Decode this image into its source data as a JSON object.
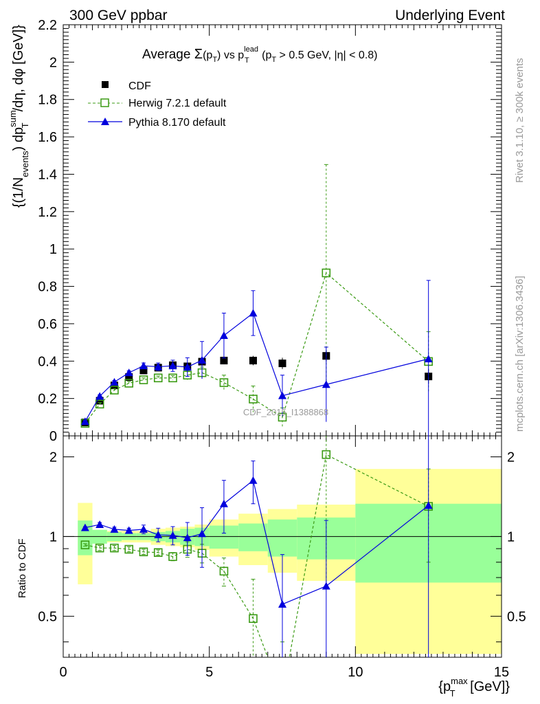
{
  "header": {
    "left_label": "300 GeV ppbar",
    "right_label": "Underlying Event"
  },
  "side_labels": {
    "rivet": "Rivet 3.1.10, ≥ 300k events",
    "mcplots": "mcplots.cern.ch [arXiv:1306.3436]"
  },
  "watermark": "CDF_2015_I1388868",
  "chart_data": {
    "type": "line",
    "title": {
      "prefix": "Average ",
      "sigma": "Σ",
      "sum_arg": "(p",
      "sum_sub": "T",
      "sum_close": ")",
      "vs": " vs p",
      "lead_sup": "lead",
      "lead_sub": "T",
      "cut_open": " (p",
      "cut_sub": "T",
      "cut_rest": " > 0.5 GeV, |η| < 0.8)"
    },
    "xlabel": {
      "open": "{p",
      "sup": "max",
      "sub": "T",
      "rest": " [GeV]}"
    },
    "ylabel": {
      "p1": "{(1/N",
      "sub1": "events",
      "p2": ") dp",
      "sup2": "sum",
      "sub2": "T",
      "p3": "/dη, dφ [GeV]}"
    },
    "ratio_ylabel": "Ratio to CDF",
    "xlim": [
      0,
      15
    ],
    "ylim": [
      0,
      2.2
    ],
    "ratio_ylim": [
      0.35,
      2.4
    ],
    "ratio_log": true,
    "x_major_ticks": [
      "0",
      "5",
      "10",
      "15"
    ],
    "y_tick_labels": [
      "0",
      "0.2",
      "0.4",
      "0.6",
      "0.8",
      "1",
      "1.2",
      "1.4",
      "1.6",
      "1.8",
      "2",
      "2.2"
    ],
    "ratio_tick_labels": [
      "0.5",
      "1",
      "2"
    ],
    "legend": {
      "placement": "top-left",
      "entries": [
        "CDF",
        "Herwig 7.2.1 default",
        "Pythia 8.170 default"
      ]
    },
    "colors": {
      "cdf": "#000000",
      "herwig": "#3a9a13",
      "pythia": "#0000dd",
      "band_inner": "#99ff99",
      "band_outer": "#ffff99"
    },
    "bins": [
      {
        "lo": 0.5,
        "hi": 1.0
      },
      {
        "lo": 1.0,
        "hi": 1.5
      },
      {
        "lo": 1.5,
        "hi": 2.0
      },
      {
        "lo": 2.0,
        "hi": 2.5
      },
      {
        "lo": 2.5,
        "hi": 3.0
      },
      {
        "lo": 3.0,
        "hi": 3.5
      },
      {
        "lo": 3.5,
        "hi": 4.0
      },
      {
        "lo": 4.0,
        "hi": 4.5
      },
      {
        "lo": 4.5,
        "hi": 5.0
      },
      {
        "lo": 5.0,
        "hi": 6.0
      },
      {
        "lo": 6.0,
        "hi": 7.0
      },
      {
        "lo": 7.0,
        "hi": 8.0
      },
      {
        "lo": 8.0,
        "hi": 10.0
      },
      {
        "lo": 10.0,
        "hi": 15.0
      }
    ],
    "series": [
      {
        "name": "CDF",
        "marker": "square-filled",
        "x": [
          0.75,
          1.25,
          1.75,
          2.25,
          2.75,
          3.25,
          3.75,
          4.25,
          4.75,
          5.5,
          6.5,
          7.5,
          9.0,
          12.5
        ],
        "y": [
          0.072,
          0.188,
          0.27,
          0.315,
          0.35,
          0.365,
          0.378,
          0.372,
          0.397,
          0.403,
          0.403,
          0.388,
          0.428,
          0.318
        ],
        "err": [
          0.005,
          0.01,
          0.01,
          0.012,
          0.012,
          0.014,
          0.015,
          0.016,
          0.02,
          0.02,
          0.025,
          0.03,
          0.03,
          0.04
        ],
        "ratio_inner": [
          0.15,
          0.06,
          0.04,
          0.03,
          0.03,
          0.04,
          0.05,
          0.07,
          0.08,
          0.1,
          0.12,
          0.16,
          0.18,
          0.33
        ],
        "ratio_outer": [
          0.34,
          0.06,
          0.05,
          0.05,
          0.05,
          0.07,
          0.08,
          0.09,
          0.11,
          0.16,
          0.22,
          0.27,
          0.32,
          0.8
        ]
      },
      {
        "name": "Herwig 7.2.1 default",
        "marker": "square-open",
        "x": [
          0.75,
          1.25,
          1.75,
          2.25,
          2.75,
          3.25,
          3.75,
          4.25,
          4.75,
          5.5,
          6.5,
          7.5,
          9.0,
          12.5
        ],
        "y": [
          0.067,
          0.17,
          0.245,
          0.282,
          0.3,
          0.31,
          0.31,
          0.325,
          0.338,
          0.285,
          0.197,
          0.1,
          0.872,
          0.398
        ],
        "err": [
          0.004,
          0.008,
          0.008,
          0.01,
          0.01,
          0.01,
          0.012,
          0.025,
          0.03,
          0.04,
          0.07,
          0.05,
          0.58,
          0.16
        ],
        "ratio": [
          0.93,
          0.905,
          0.905,
          0.895,
          0.875,
          0.87,
          0.84,
          0.895,
          0.865,
          0.74,
          0.49,
          0.25,
          2.04,
          1.3
        ],
        "ratio_err": [
          0.01,
          0.02,
          0.02,
          0.02,
          0.02,
          0.02,
          0.03,
          0.06,
          0.07,
          0.09,
          0.2,
          0.15,
          1.4,
          0.5
        ]
      },
      {
        "name": "Pythia 8.170 default",
        "marker": "triangle-filled",
        "x": [
          0.75,
          1.25,
          1.75,
          2.25,
          2.75,
          3.25,
          3.75,
          4.25,
          4.75,
          5.5,
          6.5,
          7.5,
          9.0,
          12.5
        ],
        "y": [
          0.077,
          0.212,
          0.288,
          0.338,
          0.375,
          0.37,
          0.375,
          0.368,
          0.405,
          0.537,
          0.657,
          0.215,
          0.275,
          0.412
        ],
        "err": [
          0.004,
          0.008,
          0.008,
          0.01,
          0.015,
          0.02,
          0.03,
          0.05,
          0.1,
          0.12,
          0.12,
          0.11,
          0.2,
          0.42
        ],
        "ratio": [
          1.08,
          1.11,
          1.065,
          1.055,
          1.065,
          1.015,
          1.01,
          0.99,
          1.025,
          1.33,
          1.63,
          0.555,
          0.65,
          1.31
        ],
        "ratio_err": [
          0.01,
          0.02,
          0.02,
          0.02,
          0.04,
          0.06,
          0.08,
          0.14,
          0.26,
          0.3,
          0.3,
          0.3,
          0.5,
          1.2
        ]
      }
    ]
  }
}
